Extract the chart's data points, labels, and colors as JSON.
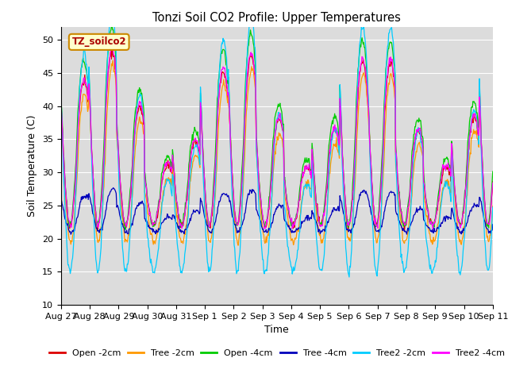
{
  "title": "Tonzi Soil CO2 Profile: Upper Temperatures",
  "xlabel": "Time",
  "ylabel": "Soil Temperature (C)",
  "ylim": [
    10,
    52
  ],
  "yticks": [
    10,
    15,
    20,
    25,
    30,
    35,
    40,
    45,
    50
  ],
  "annotation": "TZ_soilco2",
  "bg_color": "#dcdcdc",
  "fig_bg_color": "#ffffff",
  "series": [
    {
      "label": "Open -2cm",
      "color": "#dd0000"
    },
    {
      "label": "Tree -2cm",
      "color": "#ff9900"
    },
    {
      "label": "Open -4cm",
      "color": "#00cc00"
    },
    {
      "label": "Tree -4cm",
      "color": "#0000bb"
    },
    {
      "label": "Tree2 -2cm",
      "color": "#00ccff"
    },
    {
      "label": "Tree2 -4cm",
      "color": "#ff00ff"
    }
  ],
  "xtick_labels": [
    "Aug 27",
    "Aug 28",
    "Aug 29",
    "Aug 30",
    "Aug 31",
    "Sep 1",
    "Sep 2",
    "Sep 3",
    "Sep 4",
    "Sep 5",
    "Sep 6",
    "Sep 7",
    "Sep 8",
    "Sep 9",
    "Sep 10",
    "Sep 11"
  ],
  "n_days": 15.5,
  "n_pts": 744
}
